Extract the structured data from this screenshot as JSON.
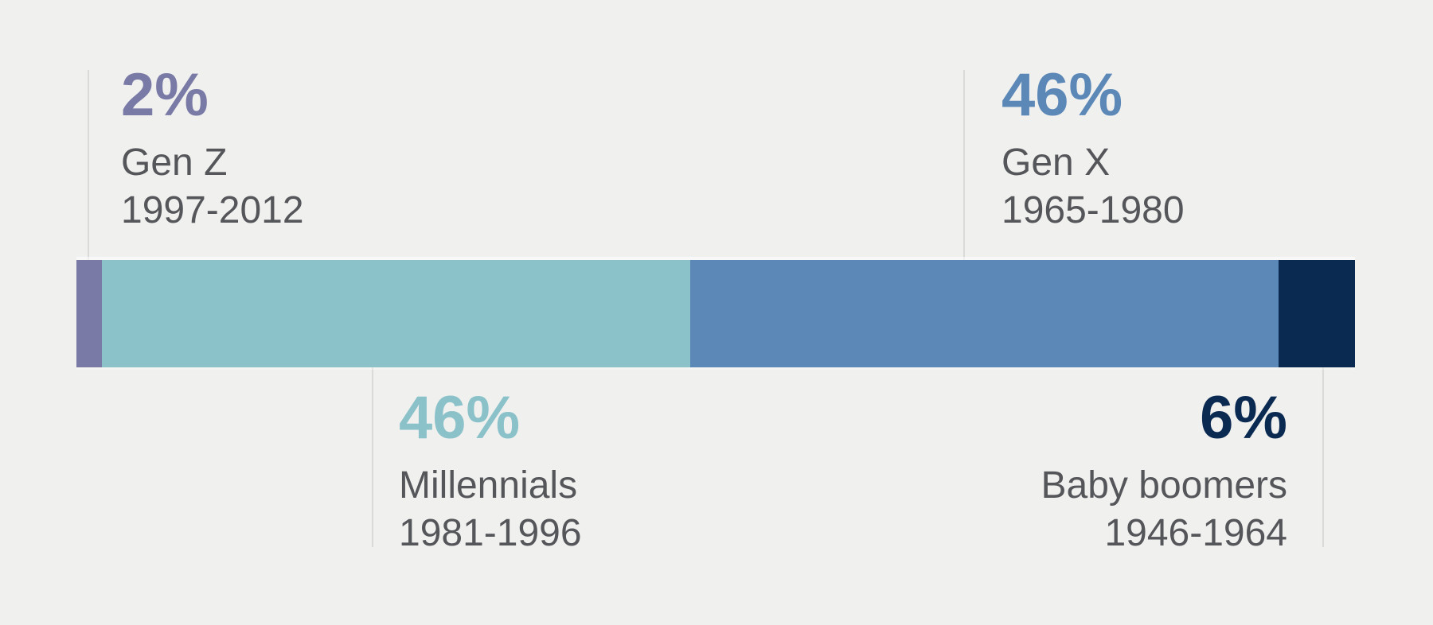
{
  "chart_data": {
    "type": "bar",
    "variant": "horizontal_stacked_percentage",
    "title": "",
    "xlabel": "",
    "ylabel": "",
    "axis": "none",
    "grid": false,
    "legend_position": "callout-labels-above-and-below-bar",
    "categories": [
      "Gen Z",
      "Millennials",
      "Gen X",
      "Baby boomers"
    ],
    "values": [
      2,
      46,
      46,
      6
    ],
    "total_pct": 100,
    "segments": [
      {
        "label": "Gen Z",
        "years": "1997-2012",
        "value_pct": 2,
        "display": "2%",
        "color": "#7A7AA6",
        "callout": "top-left"
      },
      {
        "label": "Millennials",
        "years": "1981-1996",
        "value_pct": 46,
        "display": "46%",
        "color": "#8BC2C9",
        "callout": "bottom-left"
      },
      {
        "label": "Gen X",
        "years": "1965-1980",
        "value_pct": 46,
        "display": "46%",
        "color": "#5C88B7",
        "callout": "top-right"
      },
      {
        "label": "Baby boomers",
        "years": "1946-1964",
        "value_pct": 6,
        "display": "6%",
        "color": "#0B2A52",
        "callout": "bottom-right"
      }
    ],
    "colors": {
      "background": "#F0F0EF",
      "label_text": "#55565A",
      "leader_line": "#DADAD9"
    }
  }
}
